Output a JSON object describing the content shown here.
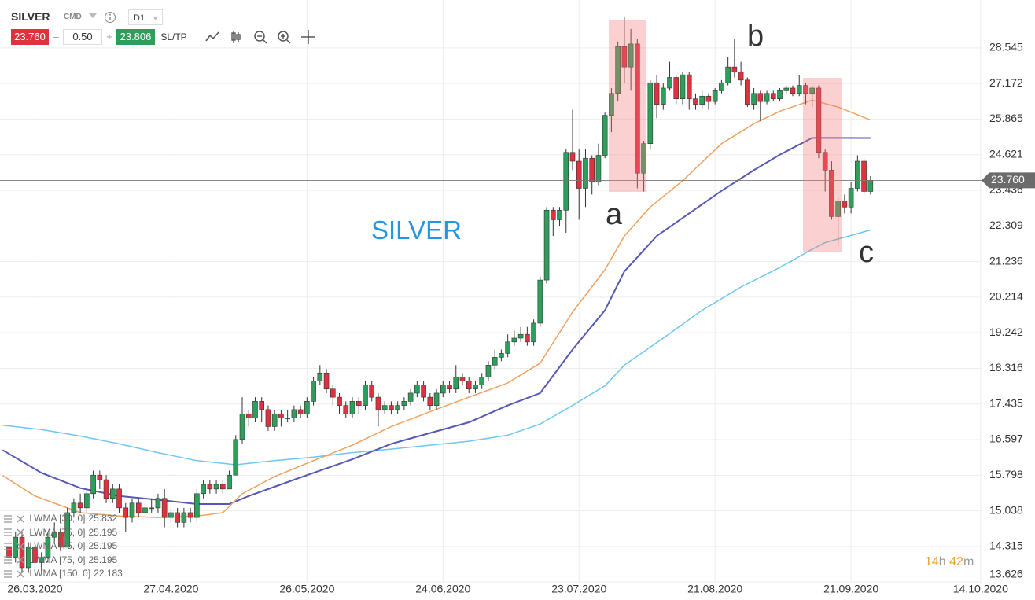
{
  "toolbar": {
    "symbol": "SILVER",
    "market": "CMD",
    "timeframe": "D1",
    "bid": "23.760",
    "volume": "0.50",
    "ask": "23.806",
    "sltp": "SL/TP"
  },
  "countdown": {
    "hours": "14",
    "hours_unit": "h",
    "minutes": "42",
    "minutes_unit": "m"
  },
  "chart_data": {
    "type": "candlestick",
    "title": "SILVER",
    "annotations": [
      "a",
      "b",
      "c"
    ],
    "log_y": true,
    "grid": true,
    "up_color": "#2e9e5b",
    "down_color": "#e0313f",
    "xlim": [
      -5.4,
      147.6
    ],
    "ylim": [
      13.6,
      30.5
    ],
    "xticks": [
      {
        "value": 0,
        "label": "26.03.2020"
      },
      {
        "value": 21,
        "label": "27.04.2020"
      },
      {
        "value": 42,
        "label": "26.05.2020"
      },
      {
        "value": 63,
        "label": "24.06.2020"
      },
      {
        "value": 84,
        "label": "23.07.2020"
      },
      {
        "value": 105,
        "label": "21.08.2020"
      },
      {
        "value": 126,
        "label": "21.09.2020"
      },
      {
        "value": 146,
        "label": "14.10.2020"
      }
    ],
    "yticks": [
      28.545,
      27.172,
      25.865,
      24.621,
      23.436,
      22.309,
      21.236,
      20.214,
      19.242,
      18.316,
      17.435,
      16.597,
      15.798,
      15.038,
      14.315,
      13.626
    ],
    "last_price": {
      "value": 23.76,
      "label": "23.760"
    },
    "x": [
      -4,
      -3,
      -2,
      -1,
      0,
      1,
      2,
      3,
      4,
      5,
      6,
      7,
      8,
      9,
      10,
      11,
      12,
      13,
      14,
      15,
      16,
      17,
      18,
      19,
      20,
      21,
      22,
      23,
      24,
      25,
      26,
      27,
      28,
      29,
      30,
      31,
      32,
      33,
      34,
      35,
      36,
      37,
      38,
      39,
      40,
      41,
      42,
      43,
      44,
      45,
      46,
      47,
      48,
      49,
      50,
      51,
      52,
      53,
      54,
      55,
      56,
      57,
      58,
      59,
      60,
      61,
      62,
      63,
      64,
      65,
      66,
      67,
      68,
      69,
      70,
      71,
      72,
      73,
      74,
      75,
      76,
      77,
      78,
      79,
      80,
      81,
      82,
      83,
      84,
      85,
      86,
      87,
      88,
      89,
      90,
      91,
      92,
      93,
      94,
      95,
      96,
      97,
      98,
      99,
      100,
      101,
      102,
      103,
      104,
      105,
      106,
      107,
      108,
      109,
      110,
      111,
      112,
      113,
      114,
      115,
      116,
      117,
      118,
      119,
      120,
      121,
      122,
      123,
      124,
      125,
      126,
      127,
      128,
      129
    ],
    "open": [
      14.3,
      14.1,
      14.5,
      13.9,
      14.3,
      14.0,
      14.1,
      14.5,
      14.6,
      14.3,
      15.0,
      15.2,
      15.1,
      15.4,
      15.8,
      15.7,
      15.3,
      15.5,
      15.1,
      14.9,
      15.2,
      15.0,
      15.1,
      15.1,
      15.3,
      14.9,
      15.0,
      14.8,
      15.0,
      14.9,
      15.4,
      15.6,
      15.5,
      15.6,
      15.5,
      15.8,
      16.6,
      17.2,
      17.1,
      17.5,
      17.3,
      16.9,
      17.2,
      17.1,
      17.1,
      17.3,
      17.2,
      17.5,
      18.0,
      18.2,
      17.8,
      17.6,
      17.4,
      17.2,
      17.5,
      17.4,
      17.9,
      17.6,
      17.3,
      17.4,
      17.3,
      17.4,
      17.5,
      17.7,
      17.9,
      17.6,
      17.4,
      17.7,
      17.9,
      17.8,
      18.1,
      18.0,
      17.8,
      17.9,
      18.1,
      18.4,
      18.6,
      18.7,
      19.0,
      19.1,
      19.2,
      19.0,
      19.5,
      20.7,
      22.8,
      22.5,
      22.8,
      24.7,
      24.4,
      23.5,
      24.5,
      23.7,
      24.6,
      26.0,
      26.8,
      28.6,
      27.8,
      28.7,
      24.0,
      25.0,
      27.2,
      26.4,
      27.0,
      27.4,
      26.6,
      27.5,
      26.6,
      26.4,
      26.7,
      26.5,
      26.9,
      27.2,
      27.8,
      27.6,
      27.3,
      26.4,
      26.8,
      26.5,
      26.8,
      26.6,
      26.9,
      27.0,
      26.8,
      27.1,
      26.8,
      27.0,
      24.7,
      24.1,
      22.6,
      23.1,
      22.9,
      23.5,
      24.4,
      23.4
    ],
    "high": [
      14.5,
      14.6,
      14.6,
      14.4,
      14.4,
      14.2,
      14.6,
      14.8,
      14.7,
      15.1,
      15.3,
      15.4,
      15.5,
      15.9,
      15.9,
      15.8,
      15.6,
      15.6,
      15.2,
      15.3,
      15.3,
      15.2,
      15.3,
      15.4,
      15.5,
      15.1,
      15.1,
      15.1,
      15.1,
      15.5,
      15.7,
      15.7,
      15.7,
      15.7,
      15.9,
      16.7,
      17.6,
      17.3,
      17.6,
      17.6,
      17.4,
      17.3,
      17.3,
      17.3,
      17.4,
      17.4,
      17.6,
      18.1,
      18.4,
      18.3,
      17.9,
      17.7,
      17.5,
      17.6,
      17.6,
      18.0,
      18.0,
      17.7,
      17.5,
      17.5,
      17.5,
      17.6,
      17.8,
      18.0,
      18.0,
      17.7,
      17.8,
      18.0,
      18.0,
      18.4,
      18.2,
      18.1,
      18.0,
      18.2,
      18.5,
      18.8,
      18.8,
      19.2,
      19.3,
      19.4,
      19.4,
      19.6,
      20.8,
      22.9,
      22.9,
      22.9,
      24.8,
      26.2,
      24.8,
      24.8,
      24.6,
      25.0,
      26.1,
      27.0,
      28.8,
      29.8,
      29.3,
      28.9,
      25.1,
      27.3,
      27.5,
      27.2,
      28.0,
      27.5,
      27.6,
      27.6,
      26.8,
      26.9,
      26.8,
      27.0,
      27.3,
      28.2,
      28.9,
      28.0,
      27.4,
      27.0,
      26.9,
      26.9,
      26.9,
      27.0,
      27.1,
      27.1,
      27.5,
      27.2,
      27.1,
      27.1,
      24.8,
      24.4,
      23.2,
      23.3,
      23.7,
      24.6,
      24.5,
      23.9
    ],
    "low": [
      13.9,
      14.0,
      13.8,
      13.8,
      13.9,
      13.8,
      14.0,
      14.4,
      14.2,
      14.3,
      14.9,
      15.0,
      15.0,
      15.3,
      15.5,
      15.2,
      15.2,
      15.0,
      14.6,
      14.8,
      14.9,
      14.9,
      15.0,
      15.0,
      14.7,
      14.8,
      14.7,
      14.7,
      14.8,
      14.8,
      15.3,
      15.4,
      15.4,
      15.4,
      15.5,
      15.8,
      16.5,
      16.9,
      17.0,
      17.0,
      16.8,
      16.8,
      16.9,
      17.0,
      17.0,
      17.1,
      17.1,
      17.4,
      17.9,
      17.7,
      17.4,
      17.2,
      17.1,
      17.1,
      17.2,
      17.3,
      17.5,
      16.9,
      17.2,
      17.2,
      17.2,
      17.3,
      17.4,
      17.6,
      17.5,
      17.3,
      17.3,
      17.6,
      17.7,
      17.7,
      17.9,
      17.7,
      17.7,
      17.8,
      18.0,
      18.3,
      18.5,
      18.6,
      18.9,
      19.0,
      18.9,
      18.9,
      19.4,
      20.6,
      22.0,
      22.3,
      22.1,
      24.1,
      22.5,
      22.9,
      23.3,
      23.6,
      24.5,
      25.4,
      26.5,
      27.2,
      26.9,
      23.5,
      23.4,
      24.8,
      25.9,
      26.2,
      26.9,
      26.4,
      26.4,
      26.2,
      26.2,
      26.2,
      26.2,
      26.4,
      26.8,
      27.1,
      27.4,
      27.1,
      26.3,
      26.2,
      25.8,
      26.4,
      26.5,
      26.5,
      26.8,
      26.7,
      26.7,
      26.4,
      26.3,
      24.5,
      23.4,
      22.5,
      21.7,
      22.7,
      22.7,
      23.4,
      23.3,
      23.3
    ],
    "close": [
      14.1,
      14.5,
      13.9,
      14.3,
      14.0,
      14.1,
      14.5,
      14.6,
      14.3,
      15.0,
      15.2,
      15.1,
      15.4,
      15.8,
      15.7,
      15.3,
      15.5,
      15.1,
      14.9,
      15.2,
      15.0,
      15.1,
      15.1,
      15.3,
      14.9,
      15.0,
      14.8,
      15.0,
      14.9,
      15.4,
      15.6,
      15.5,
      15.6,
      15.5,
      15.8,
      16.6,
      17.2,
      17.1,
      17.5,
      17.3,
      16.9,
      17.2,
      17.1,
      17.1,
      17.3,
      17.2,
      17.5,
      18.0,
      18.2,
      17.8,
      17.6,
      17.4,
      17.2,
      17.5,
      17.4,
      17.9,
      17.6,
      17.3,
      17.4,
      17.3,
      17.4,
      17.5,
      17.7,
      17.9,
      17.6,
      17.4,
      17.7,
      17.9,
      17.8,
      18.1,
      18.0,
      17.8,
      17.9,
      18.1,
      18.4,
      18.6,
      18.7,
      19.0,
      19.1,
      19.2,
      19.0,
      19.5,
      20.7,
      22.8,
      22.5,
      22.8,
      24.7,
      24.4,
      23.5,
      24.5,
      23.7,
      24.6,
      26.0,
      26.8,
      28.6,
      27.8,
      28.7,
      24.0,
      25.0,
      27.2,
      26.4,
      27.0,
      27.4,
      26.6,
      27.5,
      26.6,
      26.4,
      26.7,
      26.5,
      26.9,
      27.2,
      27.8,
      27.6,
      27.3,
      26.4,
      26.8,
      26.5,
      26.8,
      26.6,
      26.9,
      27.0,
      26.8,
      27.1,
      26.8,
      27.0,
      24.7,
      24.1,
      22.6,
      23.1,
      22.9,
      23.5,
      24.4,
      23.4,
      23.76
    ],
    "indicators": [
      {
        "color": "#6ec6f0",
        "x": [
          -5,
          1,
          7,
          13,
          19,
          25,
          31,
          37,
          43,
          49,
          55,
          61,
          67,
          73,
          78,
          83,
          88,
          91,
          97,
          103,
          109,
          115,
          120,
          122,
          129
        ],
        "values": [
          16.93,
          16.83,
          16.68,
          16.5,
          16.3,
          16.12,
          16.03,
          16.12,
          16.2,
          16.3,
          16.38,
          16.47,
          16.56,
          16.7,
          16.96,
          17.4,
          17.88,
          18.4,
          19.1,
          19.85,
          20.5,
          21.06,
          21.6,
          21.8,
          22.183
        ]
      },
      {
        "color": "#5558b5",
        "x": [
          -5,
          1,
          7,
          13,
          19,
          25,
          30,
          33,
          38,
          43,
          49,
          55,
          61,
          67,
          73,
          78,
          83,
          88,
          91,
          96,
          101,
          106,
          111,
          115,
          120,
          122,
          129
        ],
        "values": [
          16.36,
          15.85,
          15.52,
          15.35,
          15.27,
          15.18,
          15.18,
          15.35,
          15.6,
          15.85,
          16.15,
          16.5,
          16.75,
          17.0,
          17.4,
          17.7,
          18.8,
          19.85,
          20.95,
          22.0,
          22.7,
          23.42,
          24.1,
          24.62,
          25.2,
          25.2,
          25.195
        ]
      },
      {
        "color": "#f0a15e",
        "x": [
          -5,
          0,
          7,
          13,
          19,
          25,
          29,
          32,
          37,
          43,
          49,
          55,
          61,
          67,
          73,
          78,
          83,
          88,
          91,
          95,
          100,
          106,
          111,
          115,
          120,
          124,
          129
        ],
        "values": [
          15.79,
          15.35,
          15.0,
          14.93,
          14.9,
          14.93,
          15.0,
          15.4,
          15.77,
          16.12,
          16.47,
          16.9,
          17.25,
          17.6,
          17.95,
          18.45,
          19.8,
          21.0,
          22.0,
          22.9,
          23.75,
          25.0,
          25.7,
          26.15,
          26.55,
          26.3,
          25.832
        ]
      }
    ],
    "legend": [
      {
        "label": "LWMA [30, 0]",
        "value": 25.832
      },
      {
        "label": "LWMA [75, 0]",
        "value": 25.195
      },
      {
        "label": "LWMA [75, 0]",
        "value": 25.195
      },
      {
        "label": "LWMA [75, 0]",
        "value": 25.195
      },
      {
        "label": "LWMA [150, 0]",
        "value": 22.183
      }
    ]
  }
}
